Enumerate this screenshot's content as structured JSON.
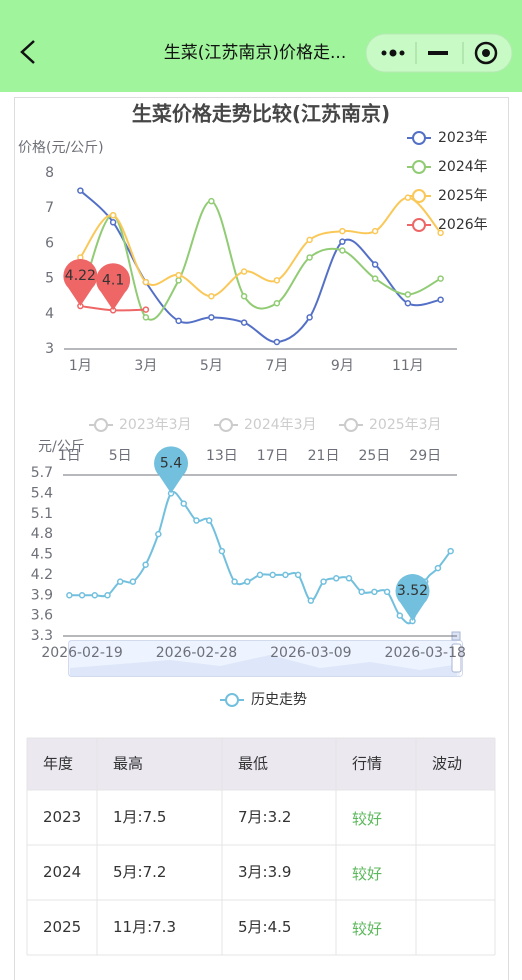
{
  "header": {
    "title": "生菜(江苏南京)价格走..."
  },
  "chart_data": [
    {
      "type": "line",
      "title": "生菜价格走势比较(江苏南京)",
      "y_label": "价格(元/公斤)",
      "categories": [
        "1月",
        null,
        "3月",
        null,
        "5月",
        null,
        "7月",
        null,
        "9月",
        null,
        "11月",
        null
      ],
      "ylim": [
        3,
        8
      ],
      "yticks": [
        3,
        4,
        5,
        6,
        7,
        8
      ],
      "grid": false,
      "smooth": true,
      "legend": "top-right",
      "series": [
        {
          "name": "2023年",
          "color": "#5470c6",
          "values": [
            7.5,
            6.6,
            4.9,
            3.8,
            3.9,
            3.75,
            3.2,
            3.9,
            6.05,
            5.4,
            4.3,
            4.4
          ]
        },
        {
          "name": "2024年",
          "color": "#91cc75",
          "values": [
            4.4,
            6.8,
            3.9,
            4.95,
            7.2,
            4.5,
            4.3,
            5.6,
            5.8,
            5.0,
            4.55,
            5.0
          ]
        },
        {
          "name": "2025年",
          "color": "#fac858",
          "values": [
            5.6,
            6.8,
            4.9,
            5.1,
            4.5,
            5.2,
            4.95,
            6.1,
            6.35,
            6.35,
            7.3,
            6.3
          ]
        },
        {
          "name": "2026年",
          "color": "#ee6666",
          "values": [
            4.22,
            4.1,
            4.12,
            null,
            null,
            null,
            null,
            null,
            null,
            null,
            null,
            null
          ],
          "mark_max_min": true
        }
      ]
    },
    {
      "type": "line",
      "y_label": "元/公斤",
      "categories": [
        null,
        "2026-02-19",
        null,
        null,
        null,
        null,
        null,
        null,
        null,
        null,
        "2026-02-28",
        null,
        null,
        null,
        null,
        null,
        null,
        null,
        null,
        "2026-03-09",
        null,
        null,
        null,
        null,
        null,
        null,
        null,
        null,
        "2026-03-18",
        null,
        null
      ],
      "x2_categories": [
        "1日",
        null,
        null,
        null,
        "5日",
        null,
        null,
        null,
        "9日",
        null,
        null,
        null,
        "13日",
        null,
        null,
        null,
        "17日",
        null,
        null,
        null,
        "21日",
        null,
        null,
        null,
        "25日",
        null,
        null,
        null,
        "29日",
        null,
        null
      ],
      "ylim": [
        3.3,
        5.7
      ],
      "yticks": [
        3.3,
        3.6,
        3.9,
        4.2,
        4.5,
        4.8,
        5.1,
        5.4,
        5.7
      ],
      "grid": false,
      "smooth": true,
      "legend": "bottom",
      "inactive_series": [
        {
          "name": "2023年3月"
        },
        {
          "name": "2024年3月"
        },
        {
          "name": "2025年3月"
        }
      ],
      "series": [
        {
          "name": "历史走势",
          "color": "#73c0de",
          "values": [
            3.9,
            3.9,
            3.9,
            3.9,
            4.1,
            4.1,
            4.35,
            4.8,
            5.4,
            5.25,
            5.0,
            5.0,
            4.55,
            4.1,
            4.1,
            4.2,
            4.2,
            4.2,
            4.2,
            3.82,
            4.1,
            4.15,
            4.15,
            3.95,
            3.95,
            3.95,
            3.6,
            3.52,
            4.1,
            4.3,
            4.55
          ],
          "mark_max_min": true
        }
      ]
    }
  ],
  "table": {
    "headers": [
      "年度",
      "最高",
      "最低",
      "行情",
      "波动"
    ],
    "rows": [
      [
        "2023",
        "1月:7.5",
        "7月:3.2",
        "较好"
      ],
      [
        "2024",
        "5月:7.2",
        "3月:3.9",
        "较好"
      ],
      [
        "2025",
        "11月:7.3",
        "5月:4.5",
        "较好"
      ]
    ]
  }
}
